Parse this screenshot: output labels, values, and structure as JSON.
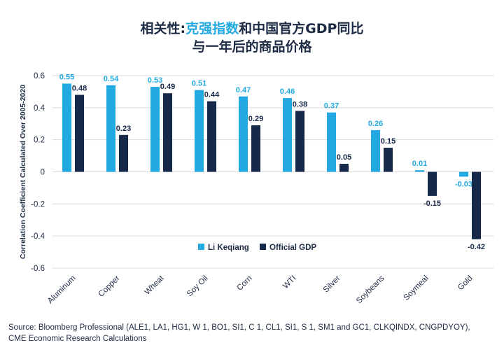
{
  "title": {
    "line1_pre": "相关性:",
    "line1_accent": "克强指数",
    "line1_post": "和中国官方GDP同比",
    "line2": "与一年后的商品价格"
  },
  "source": {
    "line1": "Source: Bloomberg Professional (ALE1, LA1, HG1, W 1, BO1, SI1, C 1, CL1, SI1, S 1, SM1 and GC1, CLKQINDX, CNGPDYOY),",
    "line2": "CME Economic Research Calculations"
  },
  "colors": {
    "li_keqiang": "#23a9e1",
    "official_gdp": "#16294a",
    "grid": "#d9d9d9",
    "text": "#1d2b45"
  },
  "chart_data": {
    "type": "bar",
    "ylabel": "Correlation Coefficient Calculated Over 2005-2020",
    "ylim": [
      -0.6,
      0.6
    ],
    "yticks": [
      "0.6",
      "0.4",
      "0.2",
      "0",
      "-0.2",
      "-0.4",
      "-0.6"
    ],
    "ytick_values": [
      0.6,
      0.4,
      0.2,
      0,
      -0.2,
      -0.4,
      -0.6
    ],
    "grid": true,
    "legend_position": "bottom-center",
    "categories": [
      "Aluminum",
      "Copper",
      "Wheat",
      "Soy Oil",
      "Corn",
      "WTI",
      "Silver",
      "Soybeans",
      "Soymeal",
      "Gold"
    ],
    "series": [
      {
        "name": "Li Keqiang",
        "values": [
          0.55,
          0.54,
          0.53,
          0.51,
          0.47,
          0.46,
          0.37,
          0.26,
          0.01,
          -0.03
        ],
        "labels": [
          "0.55",
          "0.54",
          "0.53",
          "0.51",
          "0.47",
          "0.46",
          "0.37",
          "0.26",
          "0.01",
          "-0.03"
        ]
      },
      {
        "name": "Official GDP",
        "values": [
          0.48,
          0.23,
          0.49,
          0.44,
          0.29,
          0.38,
          0.05,
          0.15,
          -0.15,
          -0.42
        ],
        "labels": [
          "0.48",
          "0.23",
          "0.49",
          "0.44",
          "0.29",
          "0.38",
          "0.05",
          "0.15",
          "-0.15",
          "-0.42"
        ]
      }
    ]
  }
}
